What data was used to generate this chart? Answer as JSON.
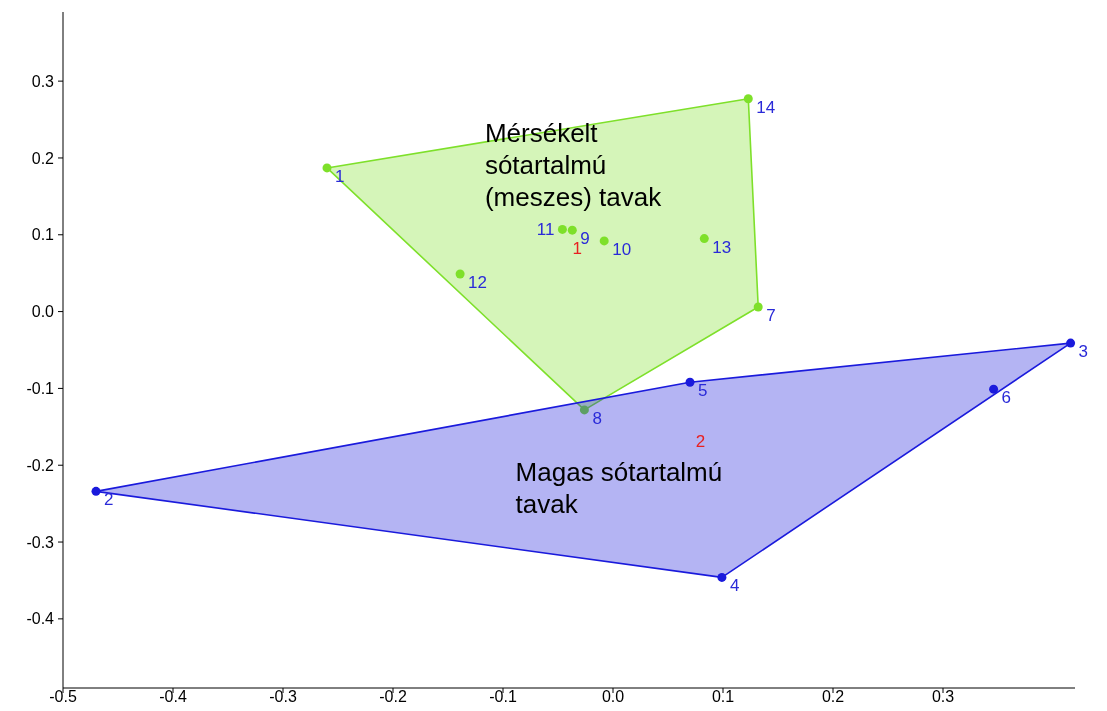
{
  "chart_data": {
    "type": "scatter",
    "series": [
      {
        "name": "Mérsékelt sótartalmú (meszes) tavak",
        "color": "#7ee02a",
        "x": [
          -0.26,
          0.123,
          0.132,
          -0.026,
          -0.139,
          -0.046,
          -0.037,
          -0.008,
          0.083
        ],
        "values": [
          0.187,
          0.277,
          0.006,
          -0.128,
          0.049,
          0.107,
          0.106,
          0.092,
          0.095
        ]
      },
      {
        "name": "Magas sótartalmú tavak",
        "color": "#1a1adc",
        "x": [
          -0.47,
          0.07,
          0.416,
          0.346,
          0.099
        ],
        "values": [
          -0.234,
          -0.092,
          -0.041,
          -0.101,
          -0.346
        ]
      }
    ],
    "annotations": [
      {
        "text": "1",
        "x": -0.26,
        "y": 0.187
      },
      {
        "text": "14",
        "x": 0.123,
        "y": 0.277
      },
      {
        "text": "7",
        "x": 0.132,
        "y": 0.006
      },
      {
        "text": "8",
        "x": -0.026,
        "y": -0.128
      },
      {
        "text": "12",
        "x": -0.139,
        "y": 0.049
      },
      {
        "text": "11",
        "x": -0.046,
        "y": 0.107
      },
      {
        "text": "9",
        "x": -0.037,
        "y": 0.106
      },
      {
        "text": "10",
        "x": -0.008,
        "y": 0.092
      },
      {
        "text": "13",
        "x": 0.083,
        "y": 0.095
      },
      {
        "text": "2",
        "x": -0.47,
        "y": -0.234
      },
      {
        "text": "5",
        "x": 0.07,
        "y": -0.092
      },
      {
        "text": "3",
        "x": 0.416,
        "y": -0.041
      },
      {
        "text": "6",
        "x": 0.346,
        "y": -0.101
      },
      {
        "text": "4",
        "x": 0.099,
        "y": -0.346
      },
      "1",
      "2"
    ],
    "xlim": [
      -0.5,
      0.42
    ],
    "xticks": [
      -0.5,
      -0.4,
      -0.3,
      -0.2,
      -0.1,
      {
        "value": 0,
        "label": "0.0"
      },
      0.1,
      0.2,
      0.3
    ],
    "ylim": [
      -0.49,
      0.39
    ],
    "yticks": [
      -0.4,
      -0.3,
      -0.2,
      -0.1,
      {
        "value": 0,
        "label": "0.0"
      },
      0.1,
      0.2,
      0.3
    ],
    "marker": "circle",
    "grid": false,
    "legend": false
  }
}
